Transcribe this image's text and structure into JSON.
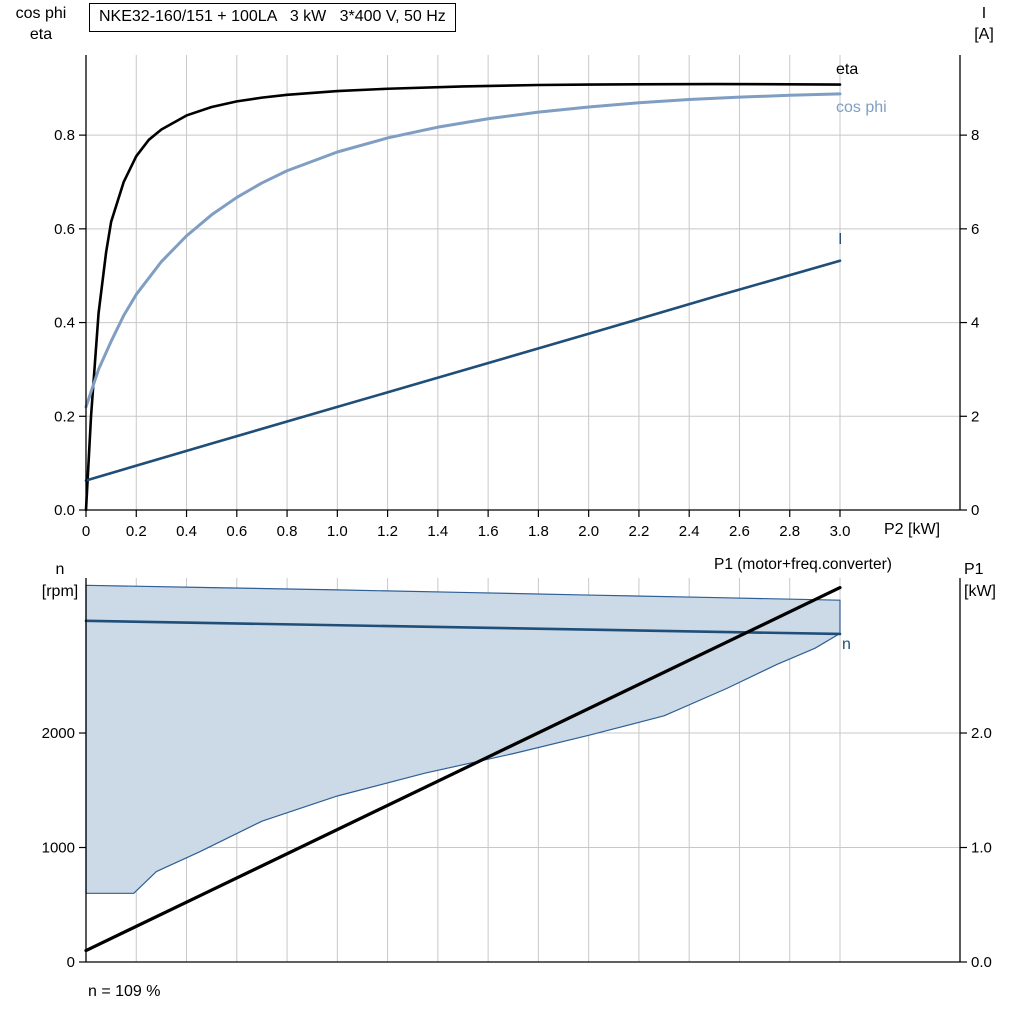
{
  "header": {
    "title_box": "NKE32-160/151 + 100LA   3 kW   3*400 V, 50 Hz"
  },
  "top_chart_labels": {
    "left_axis_line1": "cos phi",
    "left_axis_line2": "eta",
    "right_axis_line1": "I",
    "right_axis_line2": "[A]",
    "x_axis_title": "P2 [kW]",
    "eta_label": "eta",
    "cos_phi_label": "cos phi",
    "current_label": "I"
  },
  "bottom_chart_labels": {
    "left_axis_line1": "n",
    "left_axis_line2": "[rpm]",
    "right_axis_line1": "P1",
    "right_axis_line2": "[kW]",
    "p1_label": "P1 (motor+freq.converter)",
    "n_label": "n",
    "footnote": "n = 109 %"
  },
  "colors": {
    "eta": "#000000",
    "cos_phi": "#7f9ec2",
    "current": "#1f4e79",
    "speed": "#1f4e79",
    "p1": "#000000",
    "band_fill": "#ccd9e6",
    "band_stroke": "#2e5f96",
    "grid": "#c8c8c8",
    "axis": "#000000"
  },
  "chart_data": [
    {
      "type": "line",
      "title": "NKE32-160/151 + 100LA   3 kW   3*400 V, 50 Hz",
      "xlabel": "P2 [kW]",
      "ylabel_left": "cos phi / eta",
      "ylabel_right": "I [A]",
      "xlim": [
        0,
        3.0
      ],
      "ylim_left": [
        0,
        0.971
      ],
      "ylim_right": [
        0,
        9.71
      ],
      "x_gridlines": [
        0.2,
        0.4,
        0.6,
        0.8,
        1.0,
        1.2,
        1.4,
        1.6,
        1.8,
        2.0,
        2.2,
        2.4,
        2.6,
        2.8,
        3.0
      ],
      "y_gridlines": [
        0.2,
        0.4,
        0.6,
        0.8
      ],
      "x_ticks": {
        "values": [
          0,
          0.2,
          0.4,
          0.6,
          0.8,
          1.0,
          1.2,
          1.4,
          1.6,
          1.8,
          2.0,
          2.2,
          2.4,
          2.6,
          2.8,
          3.0
        ],
        "labels": [
          "0",
          "0.2",
          "0.4",
          "0.6",
          "0.8",
          "1.0",
          "1.2",
          "1.4",
          "1.6",
          "1.8",
          "2.0",
          "2.2",
          "2.4",
          "2.6",
          "2.8",
          "3.0"
        ]
      },
      "y_ticks_left": {
        "values": [
          0,
          0.2,
          0.4,
          0.6,
          0.8
        ],
        "labels": [
          "0.0",
          "0.2",
          "0.4",
          "0.6",
          "0.8"
        ]
      },
      "y_ticks_right": {
        "values": [
          0,
          2,
          4,
          6,
          8
        ],
        "labels": [
          "0",
          "2",
          "4",
          "6",
          "8"
        ]
      },
      "series": [
        {
          "name": "eta",
          "axis": "left",
          "color": "#000000",
          "width": 2.6,
          "x": [
            0,
            0.02,
            0.05,
            0.08,
            0.1,
            0.15,
            0.2,
            0.25,
            0.3,
            0.4,
            0.5,
            0.6,
            0.7,
            0.8,
            1.0,
            1.2,
            1.5,
            1.8,
            2.0,
            2.5,
            3.0
          ],
          "y": [
            0,
            0.2,
            0.42,
            0.55,
            0.615,
            0.7,
            0.755,
            0.79,
            0.812,
            0.842,
            0.86,
            0.872,
            0.88,
            0.886,
            0.894,
            0.899,
            0.904,
            0.907,
            0.908,
            0.909,
            0.908
          ]
        },
        {
          "name": "cos phi",
          "axis": "left",
          "color": "#7f9ec2",
          "width": 3,
          "x": [
            0,
            0.05,
            0.1,
            0.15,
            0.2,
            0.3,
            0.4,
            0.5,
            0.6,
            0.7,
            0.8,
            1.0,
            1.2,
            1.4,
            1.6,
            1.8,
            2.0,
            2.2,
            2.4,
            2.6,
            2.8,
            3.0
          ],
          "y": [
            0.22,
            0.3,
            0.36,
            0.415,
            0.46,
            0.53,
            0.585,
            0.63,
            0.667,
            0.698,
            0.724,
            0.764,
            0.794,
            0.817,
            0.835,
            0.849,
            0.86,
            0.869,
            0.876,
            0.881,
            0.885,
            0.888
          ]
        },
        {
          "name": "I",
          "axis": "right",
          "color": "#1f4e79",
          "width": 2.6,
          "x": [
            0,
            0.5,
            1.0,
            1.5,
            2.0,
            2.5,
            3.0
          ],
          "y": [
            0.63,
            1.42,
            2.2,
            2.98,
            3.76,
            4.55,
            5.32
          ]
        }
      ]
    },
    {
      "type": "line",
      "title": "",
      "xlabel": "",
      "ylabel_left": "n [rpm]",
      "ylabel_right": "P1 [kW]",
      "xlim": [
        0,
        3.0
      ],
      "ylim_left": [
        0,
        3354
      ],
      "ylim_right": [
        0,
        3.354
      ],
      "x_gridlines": [
        0.2,
        0.4,
        0.6,
        0.8,
        1.0,
        1.2,
        1.4,
        1.6,
        1.8,
        2.0,
        2.2,
        2.4,
        2.6,
        2.8,
        3.0
      ],
      "y_gridlines": [
        1000,
        2000
      ],
      "y_ticks_left": {
        "values": [
          0,
          1000,
          2000
        ],
        "labels": [
          "0",
          "1000",
          "2000"
        ]
      },
      "y_ticks_right": {
        "values": [
          0,
          1.0,
          2.0
        ],
        "labels": [
          "0.0",
          "1.0",
          "2.0"
        ]
      },
      "bands": [
        {
          "name": "speed-control-range",
          "fill": "#ccd9e6",
          "stroke": "#2e5f96",
          "upper": {
            "x": [
              0,
              0.5,
              1.0,
              1.5,
              2.0,
              2.5,
              3.0
            ],
            "y": [
              3290,
              3270,
              3250,
              3228,
              3205,
              3183,
              3160
            ]
          },
          "lower": {
            "x": [
              0,
              0.19,
              0.28,
              0.45,
              0.7,
              1.0,
              1.35,
              1.7,
              2.0,
              2.3,
              2.55,
              2.75,
              2.9,
              3.0
            ],
            "y": [
              600,
              600,
              790,
              960,
              1230,
              1450,
              1650,
              1820,
              1980,
              2150,
              2390,
              2600,
              2740,
              2870
            ]
          }
        }
      ],
      "series": [
        {
          "name": "n",
          "axis": "left",
          "color": "#1f4e79",
          "width": 2.6,
          "x": [
            0,
            3.0
          ],
          "y": [
            2980,
            2865
          ]
        },
        {
          "name": "P1 (motor+freq.converter)",
          "axis": "right",
          "color": "#000000",
          "width": 3.2,
          "x": [
            0,
            3.0
          ],
          "y": [
            0.1,
            3.27
          ]
        }
      ]
    }
  ]
}
